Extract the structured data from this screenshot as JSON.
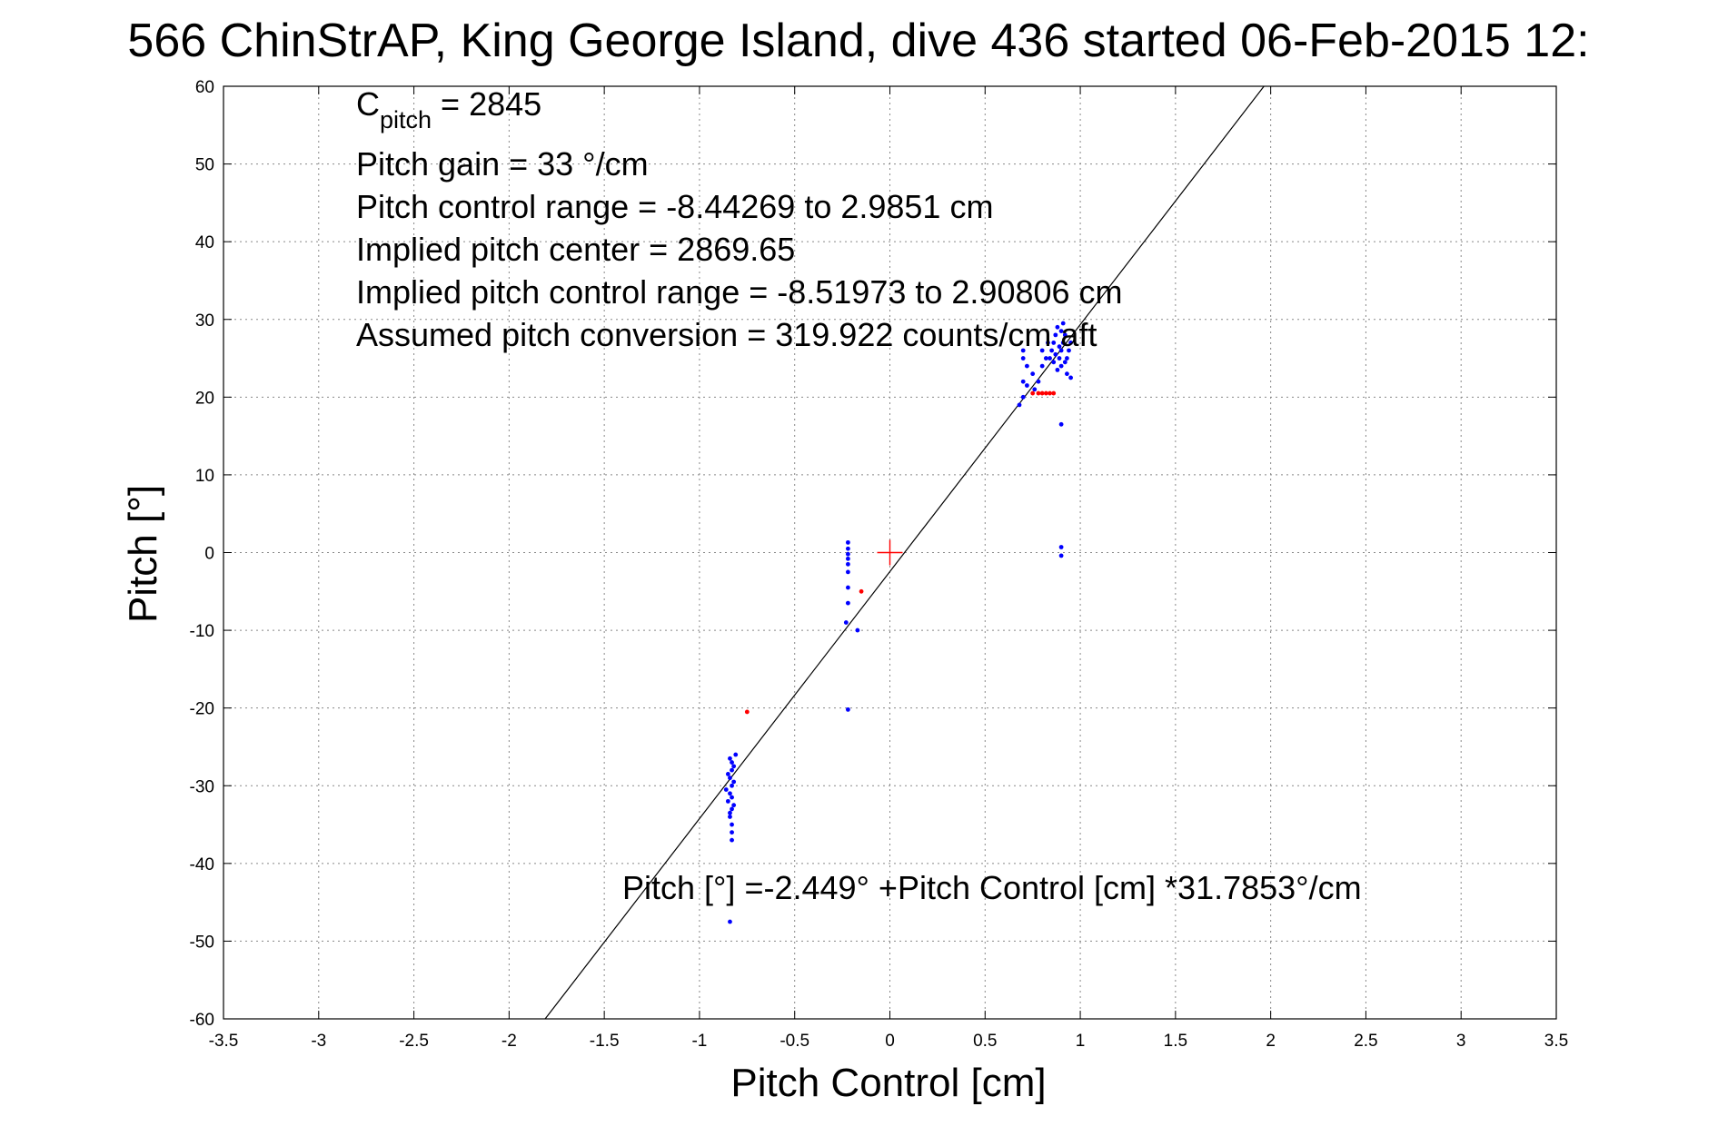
{
  "chart_data": {
    "type": "scatter",
    "title": "566 ChinStrAP, King George Island, dive 436 started 06-Feb-2015 12:",
    "xlabel": "Pitch Control [cm]",
    "ylabel": "Pitch [°]",
    "xlim": [
      -3.5,
      3.5
    ],
    "ylim": [
      -60,
      60
    ],
    "x_ticks": [
      -3.5,
      -3,
      -2.5,
      -2,
      -1.5,
      -1,
      -0.5,
      0,
      0.5,
      1,
      1.5,
      2,
      2.5,
      3,
      3.5
    ],
    "x_tick_labels": [
      "-3.5",
      "-3",
      "-2.5",
      "-2",
      "-1.5",
      "-1",
      "-0.5",
      "0",
      "0.5",
      "1",
      "1.5",
      "2",
      "2.5",
      "3",
      "3.5"
    ],
    "y_ticks": [
      60,
      50,
      40,
      30,
      20,
      10,
      0,
      -10,
      -20,
      -30,
      -40,
      -50,
      -60
    ],
    "y_tick_labels": [
      "60",
      "50",
      "40",
      "30",
      "20",
      "10",
      "0",
      "-10",
      "-20",
      "-30",
      "-40",
      "-50",
      "-60"
    ],
    "grid": true,
    "fit_line": {
      "intercept": -2.449,
      "slope": 31.7853,
      "color": "#000000"
    },
    "center_marker": {
      "x": 0,
      "y": 0,
      "color": "#ff0000"
    },
    "series": [
      {
        "color": "#0000ff",
        "points": [
          [
            -0.83,
            -27
          ],
          [
            -0.83,
            -28
          ],
          [
            -0.84,
            -29
          ],
          [
            -0.83,
            -30
          ],
          [
            -0.84,
            -31
          ],
          [
            -0.85,
            -32
          ],
          [
            -0.83,
            -33
          ],
          [
            -0.84,
            -34
          ],
          [
            -0.85,
            -28.5
          ],
          [
            -0.82,
            -29.5
          ],
          [
            -0.83,
            -31.5
          ],
          [
            -0.84,
            -33.5
          ],
          [
            -0.83,
            -35
          ],
          [
            -0.83,
            -36
          ],
          [
            -0.82,
            -27.5
          ],
          [
            -0.86,
            -30.5
          ],
          [
            -0.84,
            -26.5
          ],
          [
            -0.83,
            -37
          ],
          [
            -0.82,
            -32.5
          ],
          [
            -0.81,
            -26
          ],
          [
            -0.84,
            -47.5
          ],
          [
            -0.22,
            1.3
          ],
          [
            -0.22,
            0.5
          ],
          [
            -0.22,
            -0.2
          ],
          [
            -0.22,
            -0.8
          ],
          [
            -0.22,
            -1.5
          ],
          [
            -0.22,
            -2.5
          ],
          [
            -0.22,
            -4.5
          ],
          [
            -0.22,
            -6.5
          ],
          [
            -0.23,
            -9
          ],
          [
            -0.17,
            -10
          ],
          [
            -0.22,
            -20.2
          ],
          [
            0.7,
            26
          ],
          [
            0.7,
            25
          ],
          [
            0.72,
            24
          ],
          [
            0.7,
            22
          ],
          [
            0.72,
            21.5
          ],
          [
            0.75,
            23
          ],
          [
            0.78,
            22
          ],
          [
            0.8,
            24
          ],
          [
            0.82,
            25
          ],
          [
            0.85,
            26
          ],
          [
            0.86,
            27
          ],
          [
            0.87,
            28
          ],
          [
            0.88,
            29
          ],
          [
            0.89,
            25
          ],
          [
            0.9,
            24
          ],
          [
            0.9,
            26
          ],
          [
            0.91,
            27
          ],
          [
            0.92,
            28
          ],
          [
            0.93,
            23
          ],
          [
            0.93,
            25
          ],
          [
            0.94,
            26
          ],
          [
            0.95,
            27
          ],
          [
            0.95,
            22.5
          ],
          [
            0.88,
            23.5
          ],
          [
            0.86,
            24.5
          ],
          [
            0.87,
            25.5
          ],
          [
            0.9,
            28.5
          ],
          [
            0.91,
            29.5
          ],
          [
            0.89,
            26.5
          ],
          [
            0.92,
            24.5
          ],
          [
            0.84,
            25
          ],
          [
            0.83,
            27
          ],
          [
            0.8,
            26
          ],
          [
            0.76,
            21
          ],
          [
            0.7,
            20
          ],
          [
            0.68,
            19
          ],
          [
            0.9,
            16.5
          ],
          [
            0.9,
            0.7
          ],
          [
            0.9,
            -0.4
          ]
        ]
      },
      {
        "color": "#ff0000",
        "points": [
          [
            -0.75,
            -20.5
          ],
          [
            -0.15,
            -5
          ],
          [
            0.75,
            20.5
          ],
          [
            0.78,
            20.5
          ],
          [
            0.8,
            20.5
          ],
          [
            0.82,
            20.5
          ],
          [
            0.84,
            20.5
          ],
          [
            0.86,
            20.5
          ]
        ]
      }
    ],
    "annotations": {
      "cpitch_main": "C",
      "cpitch_sub": "pitch",
      "cpitch_value": " = 2845",
      "line2": "Pitch gain = 33 °/cm",
      "line3": "Pitch control range = -8.44269 to 2.9851 cm",
      "line4": "Implied pitch center = 2869.65",
      "line5": "Implied pitch control range = -8.51973 to 2.90806 cm",
      "line6": "Assumed pitch conversion = 319.922 counts/cm aft",
      "equation": "Pitch [°] =-2.449° +Pitch Control [cm] *31.7853°/cm"
    }
  }
}
